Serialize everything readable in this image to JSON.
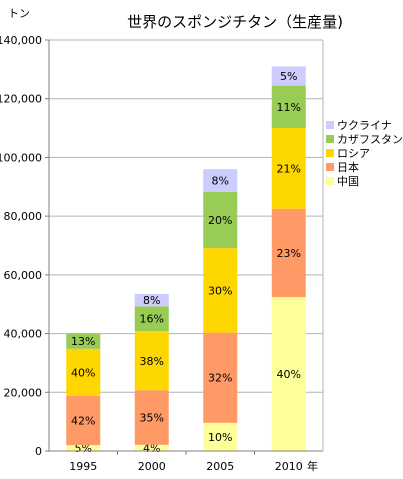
{
  "chart_data": {
    "type": "bar",
    "stacked": true,
    "title": "世界のスポンジチタン（生産量)",
    "ylabel": "トン",
    "xlabel": "年",
    "ylim": [
      0,
      140000
    ],
    "y_ticks": [
      "0",
      "20,000",
      "40,000",
      "60,000",
      "80,000",
      "100,000",
      "120,000",
      "140,000"
    ],
    "y_tick_values": [
      0,
      20000,
      40000,
      60000,
      80000,
      100000,
      120000,
      140000
    ],
    "categories": [
      "1995",
      "2000",
      "2005",
      "2010"
    ],
    "totals": [
      40000,
      53000,
      96000,
      131000
    ],
    "series": [
      {
        "name": "中国",
        "color": "#ffff99",
        "percents": [
          "5%",
          "4%",
          "10%",
          "40%"
        ],
        "shares": [
          0.05,
          0.04,
          0.1,
          0.4
        ]
      },
      {
        "name": "日本",
        "color": "#ff9966",
        "percents": [
          "42%",
          "35%",
          "32%",
          "23%"
        ],
        "shares": [
          0.42,
          0.35,
          0.32,
          0.23
        ]
      },
      {
        "name": "ロシア",
        "color": "#ffd700",
        "percents": [
          "40%",
          "38%",
          "30%",
          "21%"
        ],
        "shares": [
          0.4,
          0.38,
          0.3,
          0.21
        ]
      },
      {
        "name": "カザフスタン",
        "color": "#99cc55",
        "percents": [
          "13%",
          "16%",
          "20%",
          "11%"
        ],
        "shares": [
          0.13,
          0.16,
          0.2,
          0.11
        ]
      },
      {
        "name": "ウクライナ",
        "color": "#ccccff",
        "percents": [
          "",
          "8%",
          "8%",
          "5%"
        ],
        "shares": [
          0.0,
          0.08,
          0.08,
          0.05
        ]
      }
    ],
    "legend_position": "right",
    "grid": true
  }
}
